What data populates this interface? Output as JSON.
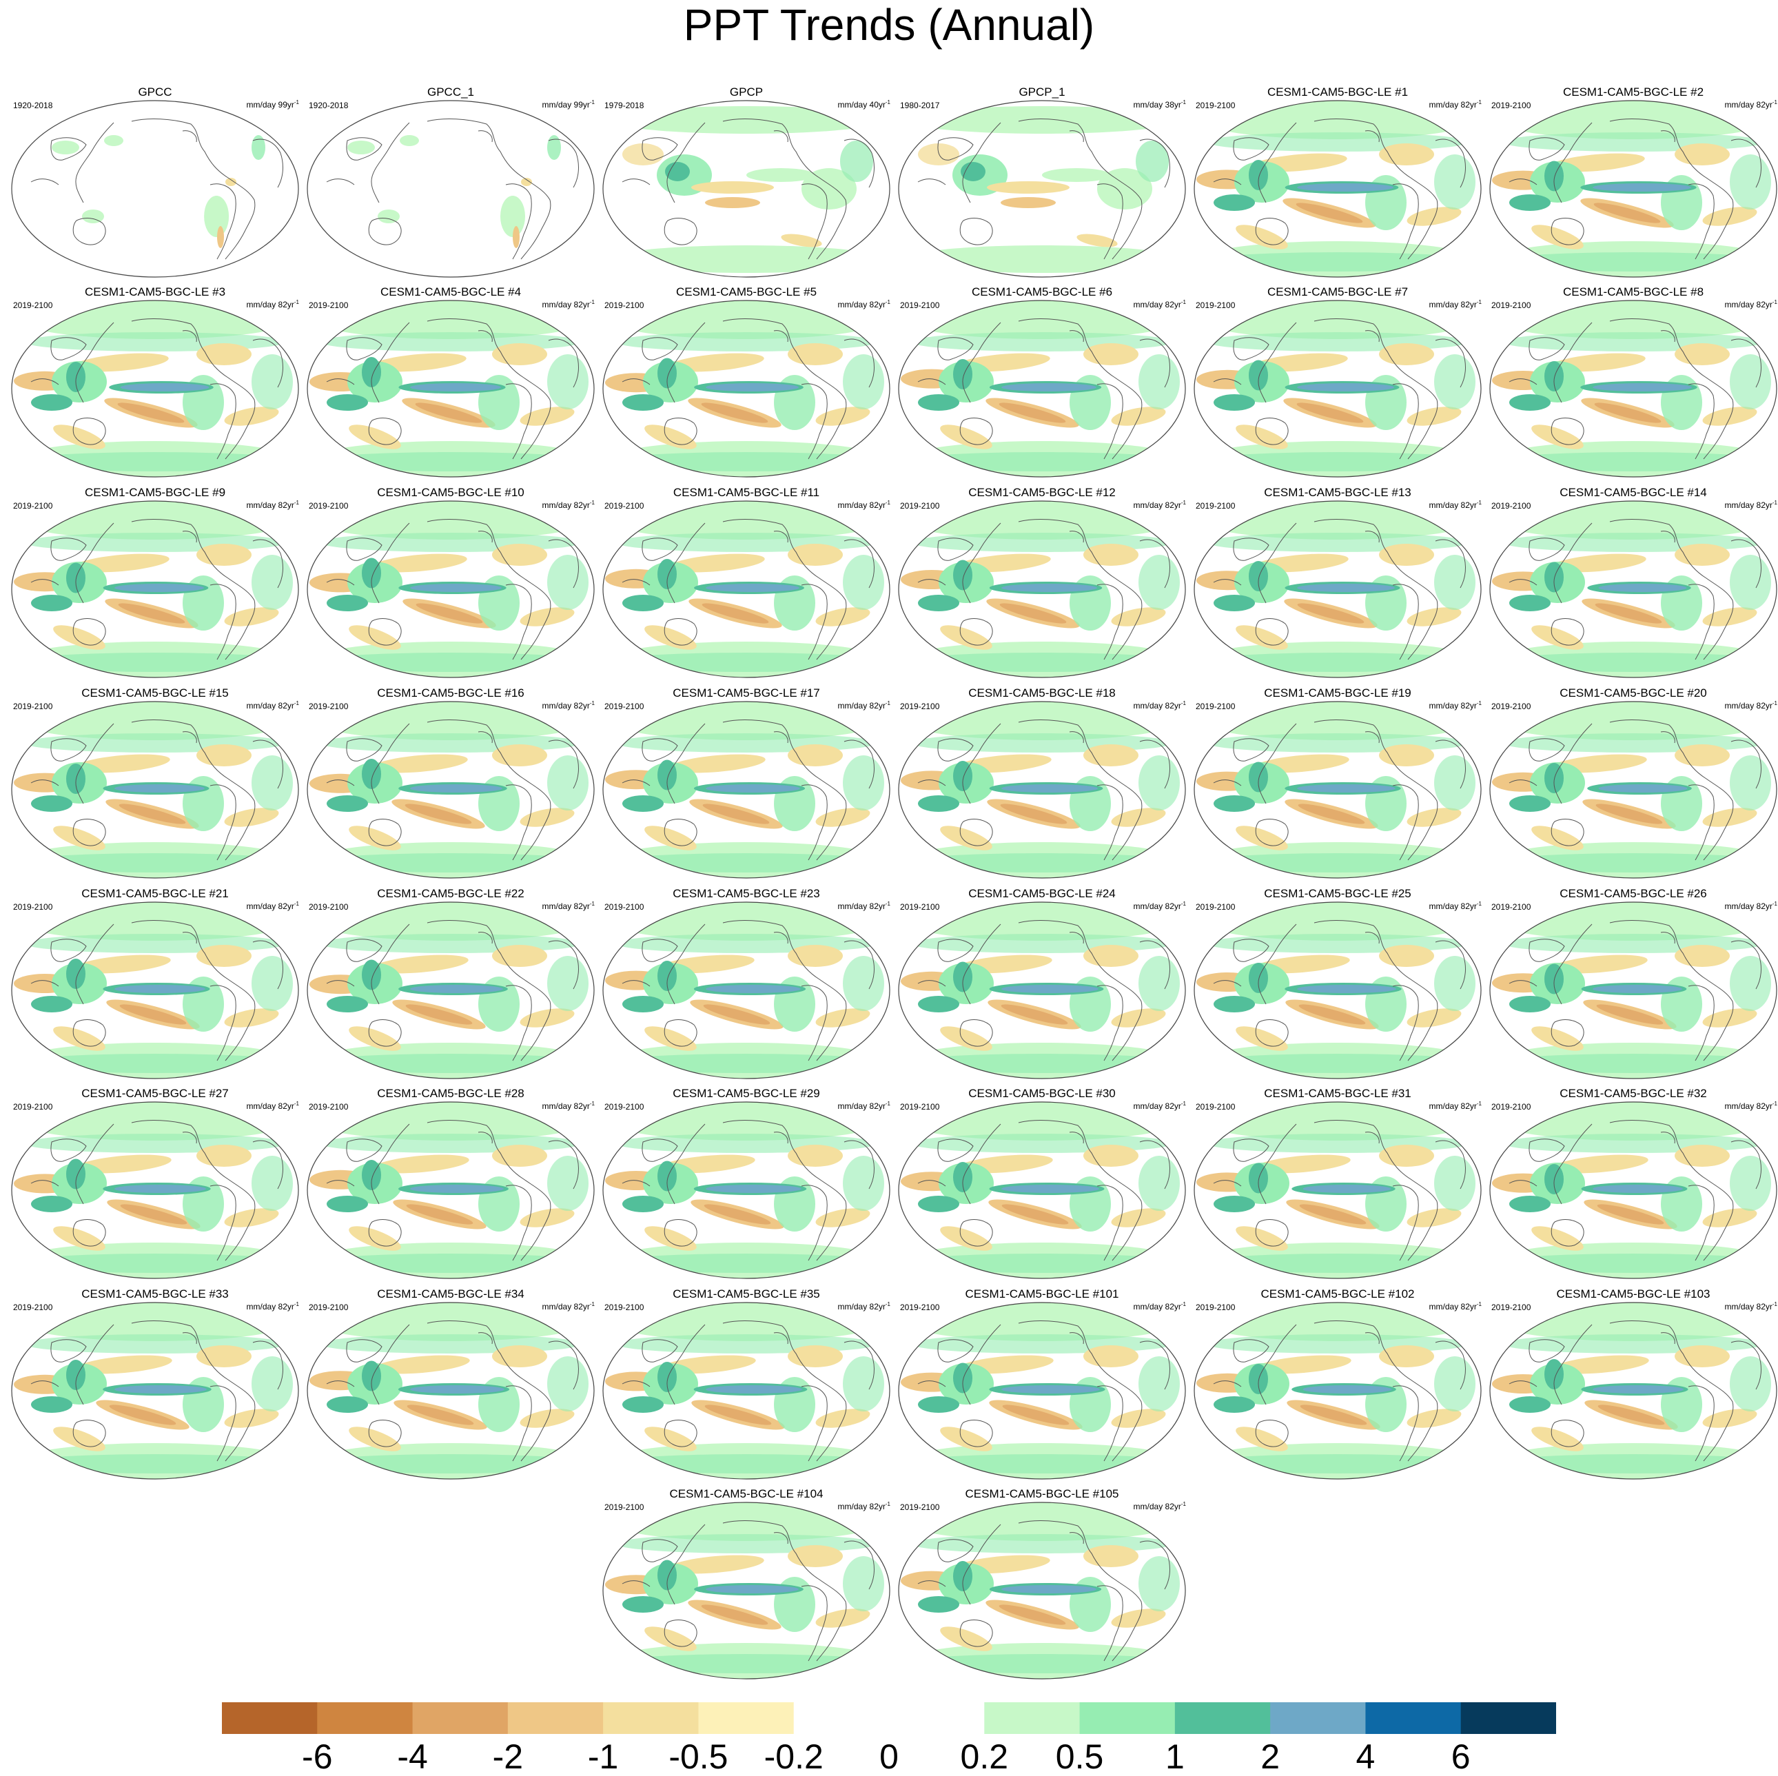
{
  "title": "PPT Trends (Annual)",
  "units_label": "mm/day",
  "panels": [
    {
      "name": "GPCC",
      "years": "1920-2018",
      "nyr": "99yr",
      "row": 0,
      "col": 0,
      "type": "land"
    },
    {
      "name": "GPCC_1",
      "years": "1920-2018",
      "nyr": "99yr",
      "row": 0,
      "col": 1,
      "type": "land"
    },
    {
      "name": "GPCP",
      "years": "1979-2018",
      "nyr": "40yr",
      "row": 0,
      "col": 2,
      "type": "obs"
    },
    {
      "name": "GPCP_1",
      "years": "1980-2017",
      "nyr": "38yr",
      "row": 0,
      "col": 3,
      "type": "obs"
    },
    {
      "name": "CESM1-CAM5-BGC-LE #1",
      "years": "2019-2100",
      "nyr": "82yr",
      "row": 0,
      "col": 4,
      "type": "model"
    },
    {
      "name": "CESM1-CAM5-BGC-LE #2",
      "years": "2019-2100",
      "nyr": "82yr",
      "row": 0,
      "col": 5,
      "type": "model"
    },
    {
      "name": "CESM1-CAM5-BGC-LE #3",
      "years": "2019-2100",
      "nyr": "82yr",
      "row": 1,
      "col": 0,
      "type": "model"
    },
    {
      "name": "CESM1-CAM5-BGC-LE #4",
      "years": "2019-2100",
      "nyr": "82yr",
      "row": 1,
      "col": 1,
      "type": "model"
    },
    {
      "name": "CESM1-CAM5-BGC-LE #5",
      "years": "2019-2100",
      "nyr": "82yr",
      "row": 1,
      "col": 2,
      "type": "model"
    },
    {
      "name": "CESM1-CAM5-BGC-LE #6",
      "years": "2019-2100",
      "nyr": "82yr",
      "row": 1,
      "col": 3,
      "type": "model"
    },
    {
      "name": "CESM1-CAM5-BGC-LE #7",
      "years": "2019-2100",
      "nyr": "82yr",
      "row": 1,
      "col": 4,
      "type": "model"
    },
    {
      "name": "CESM1-CAM5-BGC-LE #8",
      "years": "2019-2100",
      "nyr": "82yr",
      "row": 1,
      "col": 5,
      "type": "model"
    },
    {
      "name": "CESM1-CAM5-BGC-LE #9",
      "years": "2019-2100",
      "nyr": "82yr",
      "row": 2,
      "col": 0,
      "type": "model"
    },
    {
      "name": "CESM1-CAM5-BGC-LE #10",
      "years": "2019-2100",
      "nyr": "82yr",
      "row": 2,
      "col": 1,
      "type": "model"
    },
    {
      "name": "CESM1-CAM5-BGC-LE #11",
      "years": "2019-2100",
      "nyr": "82yr",
      "row": 2,
      "col": 2,
      "type": "model"
    },
    {
      "name": "CESM1-CAM5-BGC-LE #12",
      "years": "2019-2100",
      "nyr": "82yr",
      "row": 2,
      "col": 3,
      "type": "model"
    },
    {
      "name": "CESM1-CAM5-BGC-LE #13",
      "years": "2019-2100",
      "nyr": "82yr",
      "row": 2,
      "col": 4,
      "type": "model"
    },
    {
      "name": "CESM1-CAM5-BGC-LE #14",
      "years": "2019-2100",
      "nyr": "82yr",
      "row": 2,
      "col": 5,
      "type": "model"
    },
    {
      "name": "CESM1-CAM5-BGC-LE #15",
      "years": "2019-2100",
      "nyr": "82yr",
      "row": 3,
      "col": 0,
      "type": "model"
    },
    {
      "name": "CESM1-CAM5-BGC-LE #16",
      "years": "2019-2100",
      "nyr": "82yr",
      "row": 3,
      "col": 1,
      "type": "model"
    },
    {
      "name": "CESM1-CAM5-BGC-LE #17",
      "years": "2019-2100",
      "nyr": "82yr",
      "row": 3,
      "col": 2,
      "type": "model"
    },
    {
      "name": "CESM1-CAM5-BGC-LE #18",
      "years": "2019-2100",
      "nyr": "82yr",
      "row": 3,
      "col": 3,
      "type": "model"
    },
    {
      "name": "CESM1-CAM5-BGC-LE #19",
      "years": "2019-2100",
      "nyr": "82yr",
      "row": 3,
      "col": 4,
      "type": "model"
    },
    {
      "name": "CESM1-CAM5-BGC-LE #20",
      "years": "2019-2100",
      "nyr": "82yr",
      "row": 3,
      "col": 5,
      "type": "model"
    },
    {
      "name": "CESM1-CAM5-BGC-LE #21",
      "years": "2019-2100",
      "nyr": "82yr",
      "row": 4,
      "col": 0,
      "type": "model"
    },
    {
      "name": "CESM1-CAM5-BGC-LE #22",
      "years": "2019-2100",
      "nyr": "82yr",
      "row": 4,
      "col": 1,
      "type": "model"
    },
    {
      "name": "CESM1-CAM5-BGC-LE #23",
      "years": "2019-2100",
      "nyr": "82yr",
      "row": 4,
      "col": 2,
      "type": "model"
    },
    {
      "name": "CESM1-CAM5-BGC-LE #24",
      "years": "2019-2100",
      "nyr": "82yr",
      "row": 4,
      "col": 3,
      "type": "model"
    },
    {
      "name": "CESM1-CAM5-BGC-LE #25",
      "years": "2019-2100",
      "nyr": "82yr",
      "row": 4,
      "col": 4,
      "type": "model"
    },
    {
      "name": "CESM1-CAM5-BGC-LE #26",
      "years": "2019-2100",
      "nyr": "82yr",
      "row": 4,
      "col": 5,
      "type": "model"
    },
    {
      "name": "CESM1-CAM5-BGC-LE #27",
      "years": "2019-2100",
      "nyr": "82yr",
      "row": 5,
      "col": 0,
      "type": "model"
    },
    {
      "name": "CESM1-CAM5-BGC-LE #28",
      "years": "2019-2100",
      "nyr": "82yr",
      "row": 5,
      "col": 1,
      "type": "model"
    },
    {
      "name": "CESM1-CAM5-BGC-LE #29",
      "years": "2019-2100",
      "nyr": "82yr",
      "row": 5,
      "col": 2,
      "type": "model"
    },
    {
      "name": "CESM1-CAM5-BGC-LE #30",
      "years": "2019-2100",
      "nyr": "82yr",
      "row": 5,
      "col": 3,
      "type": "model"
    },
    {
      "name": "CESM1-CAM5-BGC-LE #31",
      "years": "2019-2100",
      "nyr": "82yr",
      "row": 5,
      "col": 4,
      "type": "model"
    },
    {
      "name": "CESM1-CAM5-BGC-LE #32",
      "years": "2019-2100",
      "nyr": "82yr",
      "row": 5,
      "col": 5,
      "type": "model"
    },
    {
      "name": "CESM1-CAM5-BGC-LE #33",
      "years": "2019-2100",
      "nyr": "82yr",
      "row": 6,
      "col": 0,
      "type": "model"
    },
    {
      "name": "CESM1-CAM5-BGC-LE #34",
      "years": "2019-2100",
      "nyr": "82yr",
      "row": 6,
      "col": 1,
      "type": "model"
    },
    {
      "name": "CESM1-CAM5-BGC-LE #35",
      "years": "2019-2100",
      "nyr": "82yr",
      "row": 6,
      "col": 2,
      "type": "model"
    },
    {
      "name": "CESM1-CAM5-BGC-LE #101",
      "years": "2019-2100",
      "nyr": "82yr",
      "row": 6,
      "col": 3,
      "type": "model"
    },
    {
      "name": "CESM1-CAM5-BGC-LE #102",
      "years": "2019-2100",
      "nyr": "82yr",
      "row": 6,
      "col": 4,
      "type": "model"
    },
    {
      "name": "CESM1-CAM5-BGC-LE #103",
      "years": "2019-2100",
      "nyr": "82yr",
      "row": 6,
      "col": 5,
      "type": "model"
    },
    {
      "name": "CESM1-CAM5-BGC-LE #104",
      "years": "2019-2100",
      "nyr": "82yr",
      "row": 7,
      "col": 2,
      "type": "model"
    },
    {
      "name": "CESM1-CAM5-BGC-LE #105",
      "years": "2019-2100",
      "nyr": "82yr",
      "row": 7,
      "col": 3,
      "type": "model"
    }
  ],
  "colorbar": {
    "colors": [
      "#b5652a",
      "#cf8540",
      "#e0a565",
      "#efc786",
      "#f4df9e",
      "#fdf1b8",
      "#ffffff",
      "#ffffff",
      "#c7f8c8",
      "#96edb2",
      "#52bf9a",
      "#6ea8c7",
      "#0d69a6",
      "#063a5c"
    ],
    "labels": [
      "-6",
      "-4",
      "-2",
      "-1",
      "-0.5",
      "-0.2",
      "0",
      "0.2",
      "0.5",
      "1",
      "2",
      "4",
      "6"
    ]
  }
}
